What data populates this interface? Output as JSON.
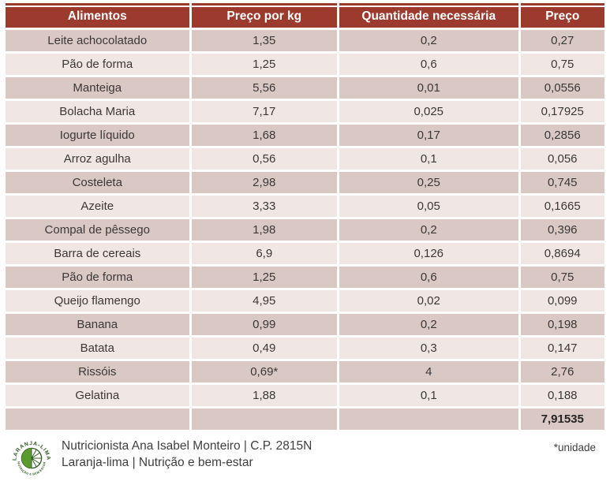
{
  "table": {
    "headers": [
      "Alimentos",
      "Preço por kg",
      "Quantidade necessária",
      "Preço"
    ],
    "rows": [
      [
        "Leite achocolatado",
        "1,35",
        "0,2",
        "0,27"
      ],
      [
        "Pão de forma",
        "1,25",
        "0,6",
        "0,75"
      ],
      [
        "Manteiga",
        "5,56",
        "0,01",
        "0,0556"
      ],
      [
        "Bolacha Maria",
        "7,17",
        "0,025",
        "0,17925"
      ],
      [
        "Iogurte líquido",
        "1,68",
        "0,17",
        "0,2856"
      ],
      [
        "Arroz agulha",
        "0,56",
        "0,1",
        "0,056"
      ],
      [
        "Costeleta",
        "2,98",
        "0,25",
        "0,745"
      ],
      [
        "Azeite",
        "3,33",
        "0,05",
        "0,1665"
      ],
      [
        "Compal de pêssego",
        "1,98",
        "0,2",
        "0,396"
      ],
      [
        "Barra de cereais",
        "6,9",
        "0,126",
        "0,8694"
      ],
      [
        "Pão de forma",
        "1,25",
        "0,6",
        "0,75"
      ],
      [
        "Queijo flamengo",
        "4,95",
        "0,02",
        "0,099"
      ],
      [
        "Banana",
        "0,99",
        "0,2",
        "0,198"
      ],
      [
        "Batata",
        "0,49",
        "0,3",
        "0,147"
      ],
      [
        "Rissóis",
        "0,69*",
        "4",
        "2,76"
      ],
      [
        "Gelatina",
        "1,88",
        "0,1",
        "0,188"
      ]
    ],
    "total": "7,91535"
  },
  "footer": {
    "line1": "Nutricionista Ana Isabel Monteiro | C.P. 2815N",
    "line2": "Laranja-lima | Nutrição e bem-estar",
    "note": "*unidade",
    "logo_top_text": "LARANJA-LIMA",
    "logo_bottom_text": "NUTRIÇÃO E BEM-ESTAR"
  },
  "colors": {
    "header_bg": "#9c3b2d",
    "header_text": "#ffffff",
    "row_dark": "#dac8c5",
    "row_light": "#f0e7e5",
    "body_text": "#3b3838",
    "logo_green_dark": "#2e5b1f",
    "logo_green": "#5b9b2e"
  }
}
